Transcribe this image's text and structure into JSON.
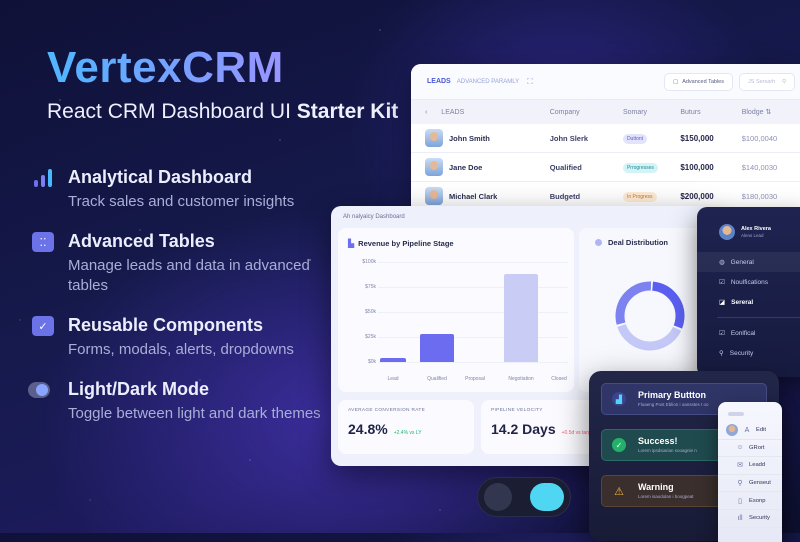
{
  "hero": {
    "brand": "VertexCRM",
    "tagline_prefix": "React CRM Dashboard UI ",
    "tagline_bold": "Starter Kit"
  },
  "features": [
    {
      "icon": "bar-chart-icon",
      "title": "Analytical Dashboard",
      "desc": "Track sales and customer insights"
    },
    {
      "icon": "table-icon",
      "title": "Advanced Tables",
      "desc": "Manage leads and data in advanced tables"
    },
    {
      "icon": "checkbox-icon",
      "title": "Reusable Components",
      "desc": "Forms, modals, alerts, dropdowns"
    },
    {
      "icon": "toggle-icon",
      "title": "Light/Dark Mode",
      "desc": "Toggle between light and dark themes"
    }
  ],
  "leads_table": {
    "tabs": [
      "LEADS",
      "ADVANCED PARAMLY"
    ],
    "advanced_tables_button": "Advanced Tables",
    "search_placeholder": "JS Sersarh",
    "columns": [
      "LEADS",
      "Company",
      "Somary",
      "Buturs",
      "Blodge ⇅"
    ],
    "rows": [
      {
        "name": "John Smith",
        "company": "John Slerk",
        "status": "Duttont",
        "status_color": "#e3e4fb",
        "status_text": "#5a5fc4",
        "amount": "$150,000",
        "budget": "$100,0040"
      },
      {
        "name": "Jane Doe",
        "company": "Qualified",
        "status": "Prrogresses",
        "status_color": "#d3f3f6",
        "status_text": "#1f8a99",
        "amount": "$100,000",
        "budget": "$140,0030"
      },
      {
        "name": "Michael Clark",
        "company": "Budgetd",
        "status": "In Progress",
        "status_color": "#fdebd6",
        "status_text": "#c67a25",
        "amount": "$200,000",
        "budget": "$180,0030"
      }
    ]
  },
  "dashboard": {
    "title": "Ah nalyaicy Dashboard",
    "revenue_title": "Revenue by Pipeline Stage",
    "distribution_title": "Deal Distribution",
    "kpis": [
      {
        "label": "AVERAGE CONVERSION RATE",
        "value": "24.8%",
        "change": "+2.4% vs LY",
        "change_color": "#22b573"
      },
      {
        "label": "PIPELINE VELOCITY",
        "value": "14.2 Days",
        "change": "+0.5d vs target",
        "change_color": "#f05a6e"
      }
    ]
  },
  "chart_data": {
    "type": "bar",
    "title": "Revenue by Pipeline Stage",
    "categories": [
      "Lead",
      "Qualified",
      "Proposal",
      "Negotiation",
      "Closed"
    ],
    "values": [
      4,
      28,
      0,
      88,
      0
    ],
    "ytick_labels": [
      "$100k",
      "$75k",
      "$50k",
      "$25k",
      "$0k"
    ],
    "ylim": [
      0,
      100
    ],
    "grid": true
  },
  "donut": {
    "segments": [
      {
        "value": 30,
        "color": "#5b5ff0"
      },
      {
        "value": 38,
        "color": "#c3c8f6"
      },
      {
        "value": 30,
        "color": "#7c82f0"
      }
    ]
  },
  "settings_panel": {
    "user_name": "Alex Rivera",
    "user_role": "Alens Lead",
    "items": [
      {
        "icon": "globe-icon",
        "glyph": "◍",
        "label": "General",
        "selected": true,
        "bold": false
      },
      {
        "icon": "checkbox-icon",
        "glyph": "☑",
        "label": "Noulfications",
        "selected": false,
        "bold": false
      },
      {
        "icon": "layout-icon",
        "glyph": "◪",
        "label": "Sereral",
        "selected": false,
        "bold": true
      },
      {
        "icon": "checkbox-icon",
        "glyph": "☑",
        "label": "Eonlfical",
        "selected": false,
        "bold": false
      },
      {
        "icon": "search-icon",
        "glyph": "⚲",
        "label": "Security",
        "selected": false,
        "bold": false
      }
    ]
  },
  "components_panel": {
    "alerts": [
      {
        "title": "Primary Buttton",
        "sub": "Floaeng Post Eblion i oansstes t oo",
        "glyph": "▟"
      },
      {
        "title": "Success!",
        "sub": "Lorem ipsdsiarian sooagnie n",
        "glyph": "✓"
      },
      {
        "title": "Warning",
        "sub": "Lorem isaodolan i boogpeat",
        "glyph": "⚠"
      }
    ]
  },
  "menu_panel": {
    "items": [
      {
        "icon": "avatar",
        "glyph": "A",
        "label": "Edit"
      },
      {
        "icon": "users-icon",
        "glyph": "☺",
        "label": "GRort"
      },
      {
        "icon": "mail-icon",
        "glyph": "✉",
        "label": "Leadd"
      },
      {
        "icon": "search-icon",
        "glyph": "⚲",
        "label": "Genseut"
      },
      {
        "icon": "phone-icon",
        "glyph": "▯",
        "label": "Esonp"
      },
      {
        "icon": "chart-icon",
        "glyph": "ıll",
        "label": "Security"
      }
    ]
  }
}
